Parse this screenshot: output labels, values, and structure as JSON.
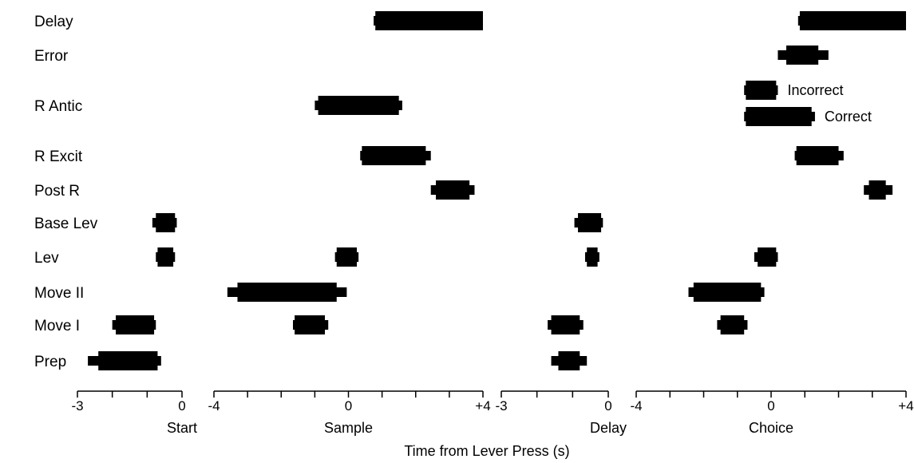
{
  "chart_data": {
    "type": "bar",
    "rows": [
      "Delay",
      "Error",
      "R Antic",
      "R Excit",
      "Post R",
      "Base Lev",
      "Lev",
      "Move II",
      "Move I",
      "Prep"
    ],
    "xlabel": "Time from Lever Press (s)",
    "panels": [
      {
        "name": "Start",
        "xlim": [
          -3,
          0
        ],
        "tick_labels": [
          "-3",
          "0"
        ],
        "bars": [
          {
            "row": "Base Lev",
            "core": [
              -0.75,
              -0.2
            ],
            "tails": [
              -0.85,
              -0.15
            ]
          },
          {
            "row": "Lev",
            "core": [
              -0.7,
              -0.25
            ],
            "tails": [
              -0.75,
              -0.2
            ]
          },
          {
            "row": "Move I",
            "core": [
              -1.9,
              -0.8
            ],
            "tails": [
              -2.0,
              -0.75
            ]
          },
          {
            "row": "Prep",
            "core": [
              -2.4,
              -0.7
            ],
            "tails": [
              -2.7,
              -0.6
            ]
          }
        ]
      },
      {
        "name": "Sample",
        "xlim": [
          -4,
          4
        ],
        "tick_labels": [
          "-4",
          "0",
          "+4"
        ],
        "bars": [
          {
            "row": "Delay",
            "core": [
              0.8,
              4.0
            ],
            "tails": [
              0.75,
              4.0
            ]
          },
          {
            "row": "R Antic",
            "core": [
              -0.9,
              1.5
            ],
            "tails": [
              -1.0,
              1.6
            ]
          },
          {
            "row": "R Excit",
            "core": [
              0.4,
              2.3
            ],
            "tails": [
              0.35,
              2.45
            ]
          },
          {
            "row": "Post R",
            "core": [
              2.6,
              3.6
            ],
            "tails": [
              2.45,
              3.75
            ]
          },
          {
            "row": "Lev",
            "core": [
              -0.35,
              0.25
            ],
            "tails": [
              -0.4,
              0.3
            ]
          },
          {
            "row": "Move II",
            "core": [
              -3.3,
              -0.35
            ],
            "tails": [
              -3.6,
              -0.05
            ]
          },
          {
            "row": "Move I",
            "core": [
              -1.6,
              -0.7
            ],
            "tails": [
              -1.65,
              -0.6
            ]
          }
        ]
      },
      {
        "name": "Delay",
        "xlim": [
          -3,
          0
        ],
        "tick_labels": [
          "-3",
          "0"
        ],
        "bars": [
          {
            "row": "Base Lev",
            "core": [
              -0.85,
              -0.2
            ],
            "tails": [
              -0.95,
              -0.15
            ]
          },
          {
            "row": "Lev",
            "core": [
              -0.6,
              -0.3
            ],
            "tails": [
              -0.65,
              -0.25
            ]
          },
          {
            "row": "Move I",
            "core": [
              -1.6,
              -0.8
            ],
            "tails": [
              -1.7,
              -0.7
            ]
          },
          {
            "row": "Prep",
            "core": [
              -1.4,
              -0.8
            ],
            "tails": [
              -1.6,
              -0.6
            ]
          }
        ]
      },
      {
        "name": "Choice",
        "xlim": [
          -4,
          4
        ],
        "tick_labels": [
          "-4",
          "0",
          "+4"
        ],
        "bars": [
          {
            "row": "Delay",
            "core": [
              0.85,
              4.0
            ],
            "tails": [
              0.8,
              4.0
            ]
          },
          {
            "row": "Error",
            "core": [
              0.45,
              1.4
            ],
            "tails": [
              0.2,
              1.7
            ]
          },
          {
            "row": "R Antic",
            "label": "Incorrect",
            "core": [
              -0.75,
              0.15
            ],
            "tails": [
              -0.8,
              0.2
            ]
          },
          {
            "row": "R Antic",
            "label": "Correct",
            "core": [
              -0.75,
              1.2
            ],
            "tails": [
              -0.8,
              1.3
            ]
          },
          {
            "row": "R Excit",
            "core": [
              0.75,
              2.0
            ],
            "tails": [
              0.7,
              2.15
            ]
          },
          {
            "row": "Post R",
            "core": [
              2.9,
              3.4
            ],
            "tails": [
              2.75,
              3.6
            ]
          },
          {
            "row": "Lev",
            "core": [
              -0.4,
              0.15
            ],
            "tails": [
              -0.5,
              0.2
            ]
          },
          {
            "row": "Move II",
            "core": [
              -2.3,
              -0.3
            ],
            "tails": [
              -2.45,
              -0.2
            ]
          },
          {
            "row": "Move I",
            "core": [
              -1.5,
              -0.8
            ],
            "tails": [
              -1.6,
              -0.7
            ]
          }
        ]
      }
    ],
    "annotations": [
      "Incorrect",
      "Correct"
    ]
  }
}
